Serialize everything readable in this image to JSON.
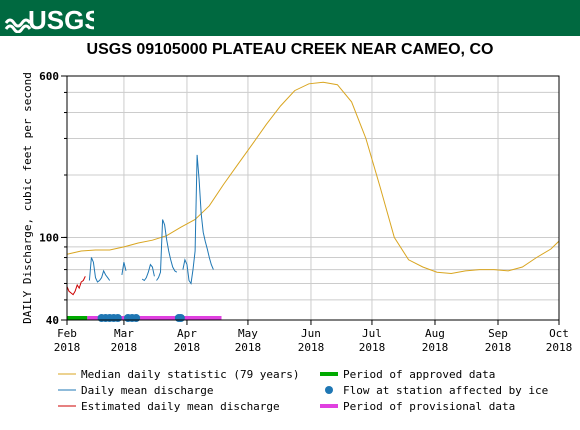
{
  "header": {
    "logo_text": "USGS"
  },
  "chart_data": {
    "type": "line",
    "title": "USGS 09105000 PLATEAU CREEK NEAR CAMEO, CO",
    "ylabel": "DAILY Discharge, cubic feet per second",
    "xlabel": "",
    "y_scale": "log",
    "ylim": [
      40,
      600
    ],
    "yticks": [
      {
        "value": 40,
        "label": "40"
      },
      {
        "value": 100,
        "label": "100"
      },
      {
        "value": 600,
        "label": "600"
      }
    ],
    "xlim": [
      "2018-02-01",
      "2018-10-01"
    ],
    "xticks": [
      {
        "date": "2018-02-01",
        "month": "Feb",
        "year": "2018"
      },
      {
        "date": "2018-03-01",
        "month": "Mar",
        "year": "2018"
      },
      {
        "date": "2018-04-01",
        "month": "Apr",
        "year": "2018"
      },
      {
        "date": "2018-05-01",
        "month": "May",
        "year": "2018"
      },
      {
        "date": "2018-06-01",
        "month": "Jun",
        "year": "2018"
      },
      {
        "date": "2018-07-01",
        "month": "Jul",
        "year": "2018"
      },
      {
        "date": "2018-08-01",
        "month": "Aug",
        "year": "2018"
      },
      {
        "date": "2018-09-01",
        "month": "Sep",
        "year": "2018"
      },
      {
        "date": "2018-10-01",
        "month": "Oct",
        "year": "2018"
      }
    ],
    "grid": true,
    "series": [
      {
        "name": "Median daily statistic (79 years)",
        "color": "#d9a520",
        "x": [
          "2018-02-01",
          "2018-02-08",
          "2018-02-15",
          "2018-02-22",
          "2018-03-01",
          "2018-03-08",
          "2018-03-15",
          "2018-03-22",
          "2018-03-29",
          "2018-04-05",
          "2018-04-12",
          "2018-04-19",
          "2018-04-26",
          "2018-05-03",
          "2018-05-10",
          "2018-05-17",
          "2018-05-24",
          "2018-05-31",
          "2018-06-07",
          "2018-06-14",
          "2018-06-21",
          "2018-06-28",
          "2018-07-05",
          "2018-07-12",
          "2018-07-19",
          "2018-07-26",
          "2018-08-02",
          "2018-08-09",
          "2018-08-16",
          "2018-08-23",
          "2018-08-30",
          "2018-09-06",
          "2018-09-13",
          "2018-09-20",
          "2018-09-27",
          "2018-10-01"
        ],
        "values": [
          83,
          86,
          87,
          87,
          90,
          94,
          97,
          102,
          112,
          122,
          142,
          180,
          225,
          280,
          350,
          430,
          510,
          550,
          560,
          545,
          450,
          300,
          175,
          100,
          78,
          72,
          68,
          67,
          69,
          70,
          70,
          69,
          72,
          80,
          88,
          96
        ]
      },
      {
        "name": "Daily mean discharge",
        "color": "#1f77b4",
        "x": [
          "2018-02-12",
          "2018-02-13",
          "2018-02-14",
          "2018-02-15",
          "2018-02-16",
          "2018-02-17",
          "2018-02-18",
          "2018-02-19",
          "2018-02-20",
          "2018-02-21",
          "2018-02-22",
          "2018-02-23",
          "2018-02-24",
          "2018-02-25",
          "2018-02-26",
          "2018-02-27",
          "2018-02-28",
          "2018-03-01",
          "2018-03-02",
          "2018-03-03",
          "2018-03-04",
          "2018-03-05",
          "2018-03-06",
          "2018-03-07",
          "2018-03-08",
          "2018-03-09",
          "2018-03-10",
          "2018-03-11",
          "2018-03-12",
          "2018-03-13",
          "2018-03-14",
          "2018-03-15",
          "2018-03-16",
          "2018-03-17",
          "2018-03-18",
          "2018-03-19",
          "2018-03-20",
          "2018-03-21",
          "2018-03-22",
          "2018-03-23",
          "2018-03-24",
          "2018-03-25",
          "2018-03-26",
          "2018-03-27",
          "2018-03-28",
          "2018-03-29",
          "2018-03-30",
          "2018-03-31",
          "2018-04-01",
          "2018-04-02",
          "2018-04-03",
          "2018-04-04",
          "2018-04-05",
          "2018-04-06",
          "2018-04-07",
          "2018-04-08",
          "2018-04-09",
          "2018-04-10",
          "2018-04-11",
          "2018-04-12",
          "2018-04-13",
          "2018-04-14",
          "2018-04-15"
        ],
        "values": [
          62,
          80,
          76,
          64,
          61,
          62,
          64,
          69,
          66,
          64,
          62,
          null,
          null,
          null,
          null,
          null,
          66,
          76,
          69,
          null,
          null,
          null,
          null,
          null,
          null,
          null,
          63,
          62,
          64,
          68,
          74,
          72,
          65,
          62,
          64,
          68,
          122,
          115,
          98,
          86,
          78,
          72,
          69,
          68,
          null,
          null,
          70,
          78,
          74,
          62,
          60,
          70,
          86,
          250,
          190,
          130,
          106,
          96,
          88,
          80,
          74,
          70,
          null
        ],
        "segments": [
          {
            "x": [
              "2018-02-12",
              "2018-02-13",
              "2018-02-14",
              "2018-02-15",
              "2018-02-16",
              "2018-02-17",
              "2018-02-18",
              "2018-02-19",
              "2018-02-20",
              "2018-02-21",
              "2018-02-22"
            ],
            "values": [
              62,
              80,
              76,
              64,
              61,
              62,
              64,
              69,
              66,
              64,
              62
            ]
          },
          {
            "x": [
              "2018-02-28",
              "2018-03-01",
              "2018-03-02"
            ],
            "values": [
              66,
              76,
              69
            ]
          },
          {
            "x": [
              "2018-03-10",
              "2018-03-11",
              "2018-03-12",
              "2018-03-13",
              "2018-03-14",
              "2018-03-15",
              "2018-03-16"
            ],
            "values": [
              63,
              62,
              64,
              68,
              74,
              72,
              65
            ]
          },
          {
            "x": [
              "2018-03-17",
              "2018-03-18",
              "2018-03-19",
              "2018-03-20",
              "2018-03-21",
              "2018-03-22",
              "2018-03-23",
              "2018-03-24",
              "2018-03-25",
              "2018-03-26",
              "2018-03-27"
            ],
            "values": [
              62,
              64,
              68,
              122,
              115,
              98,
              86,
              78,
              72,
              69,
              68
            ]
          },
          {
            "x": [
              "2018-03-30",
              "2018-03-31",
              "2018-04-01",
              "2018-04-02",
              "2018-04-03",
              "2018-04-04",
              "2018-04-05",
              "2018-04-06",
              "2018-04-07",
              "2018-04-08",
              "2018-04-09",
              "2018-04-10",
              "2018-04-11",
              "2018-04-12",
              "2018-04-13",
              "2018-04-14"
            ],
            "values": [
              70,
              78,
              74,
              62,
              60,
              70,
              86,
              250,
              190,
              130,
              106,
              96,
              88,
              80,
              74,
              70
            ]
          }
        ]
      },
      {
        "name": "Estimated daily mean discharge",
        "color": "#cc0000",
        "x": [
          "2018-02-01",
          "2018-02-02",
          "2018-02-03",
          "2018-02-04",
          "2018-02-05",
          "2018-02-06",
          "2018-02-07",
          "2018-02-08",
          "2018-02-09",
          "2018-02-10"
        ],
        "values": [
          58,
          55,
          54,
          53,
          55,
          59,
          57,
          61,
          62,
          65
        ]
      }
    ],
    "periods": [
      {
        "name": "Period of approved data",
        "color": "#00aa00",
        "start": "2018-02-01",
        "end": "2018-02-11"
      },
      {
        "name": "Period of provisional data",
        "color": "#e040e0",
        "start": "2018-02-11",
        "end": "2018-04-18"
      }
    ],
    "ice_points": {
      "name": "Flow at station affected by ice",
      "color": "#1f77b4",
      "x": [
        "2018-02-18",
        "2018-02-20",
        "2018-02-22",
        "2018-02-24",
        "2018-02-26",
        "2018-03-03",
        "2018-03-05",
        "2018-03-07",
        "2018-03-28",
        "2018-03-29"
      ]
    }
  }
}
